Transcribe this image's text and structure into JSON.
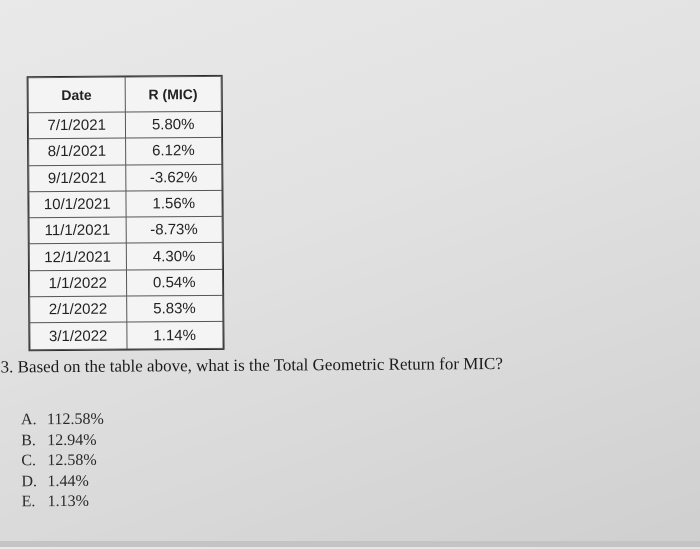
{
  "table": {
    "headers": [
      "Date",
      "R (MIC)"
    ],
    "rows": [
      {
        "date": "7/1/2021",
        "return": "5.80%"
      },
      {
        "date": "8/1/2021",
        "return": "6.12%"
      },
      {
        "date": "9/1/2021",
        "return": "-3.62%"
      },
      {
        "date": "10/1/2021",
        "return": "1.56%"
      },
      {
        "date": "11/1/2021",
        "return": "-8.73%"
      },
      {
        "date": "12/1/2021",
        "return": "4.30%"
      },
      {
        "date": "1/1/2022",
        "return": "0.54%"
      },
      {
        "date": "2/1/2022",
        "return": "5.83%"
      },
      {
        "date": "3/1/2022",
        "return": "1.14%"
      }
    ]
  },
  "question": {
    "text": "3. Based on the table above, what is the Total Geometric Return for MIC?"
  },
  "options": [
    {
      "letter": "A.",
      "value": "112.58%"
    },
    {
      "letter": "B.",
      "value": "12.94%"
    },
    {
      "letter": "C.",
      "value": "12.58%"
    },
    {
      "letter": "D.",
      "value": "1.44%"
    },
    {
      "letter": "E.",
      "value": "1.13%"
    }
  ]
}
